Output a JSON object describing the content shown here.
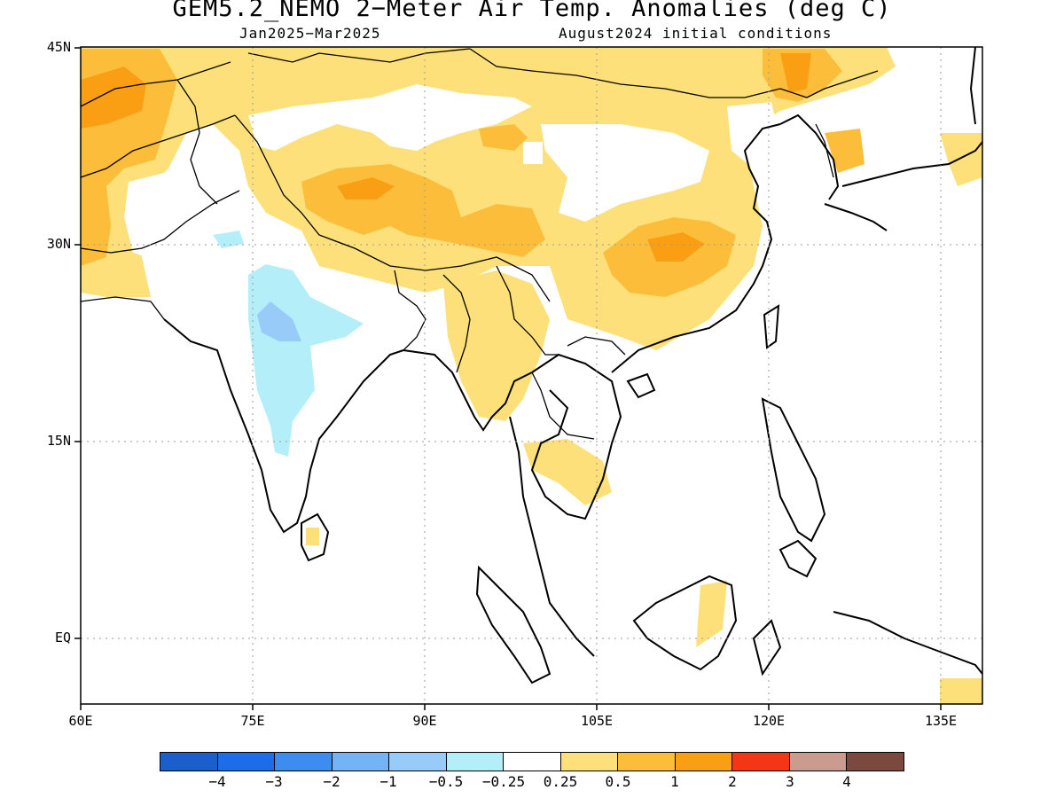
{
  "title": "GEM5.2_NEMO 2−Meter Air Temp. Anomalies (deg C)",
  "subtitle_left": "Jan2025−Mar2025",
  "subtitle_right": "August2024 initial conditions",
  "lat_labels": [
    "45N",
    "30N",
    "15N",
    "EQ"
  ],
  "lon_labels": [
    "60E",
    "75E",
    "90E",
    "105E",
    "120E",
    "135E"
  ],
  "colorbar": {
    "colors": [
      "#1a5fcc",
      "#1e6de8",
      "#3d8df0",
      "#74b4f6",
      "#98cbf7",
      "#b3eef9",
      "#ffffff",
      "#fde07a",
      "#fcbe3a",
      "#fa9f14",
      "#f43516",
      "#c99c8f",
      "#7a4a3e"
    ],
    "labels": [
      "−4",
      "−3",
      "−2",
      "−1",
      "−0.5",
      "−0.25",
      "0.25",
      "0.5",
      "1",
      "2",
      "3",
      "4"
    ]
  },
  "map_colors": {
    "light_yellow": "#fde07a",
    "orange": "#fcbe3a",
    "dark_orange": "#fa9f14",
    "light_blue": "#b3eef9",
    "blue": "#98cbf7"
  }
}
